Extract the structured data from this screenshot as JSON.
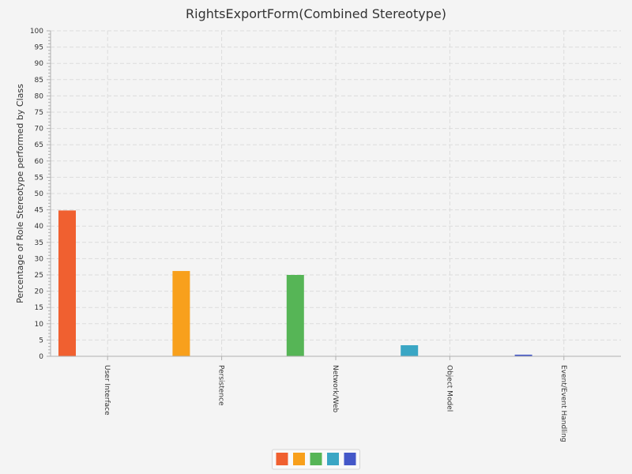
{
  "chart_data": {
    "type": "bar",
    "title": "RightsExportForm(Combined Stereotype)",
    "ylabel": "Percentage of Role Stereotype performed by Class",
    "xlabel": "",
    "ylim": [
      0,
      100
    ],
    "ytick_step": 5,
    "grid": true,
    "legend_position": "bottom",
    "categories": [
      "User Interface",
      "Persistence",
      "Network/Web",
      "Object Model",
      "Event/Event Handling"
    ],
    "values": [
      44.8,
      26.2,
      25.0,
      3.4,
      0.5
    ],
    "colors": [
      "#f06030",
      "#f8a01c",
      "#56b556",
      "#3aa6c4",
      "#4458c8"
    ]
  }
}
